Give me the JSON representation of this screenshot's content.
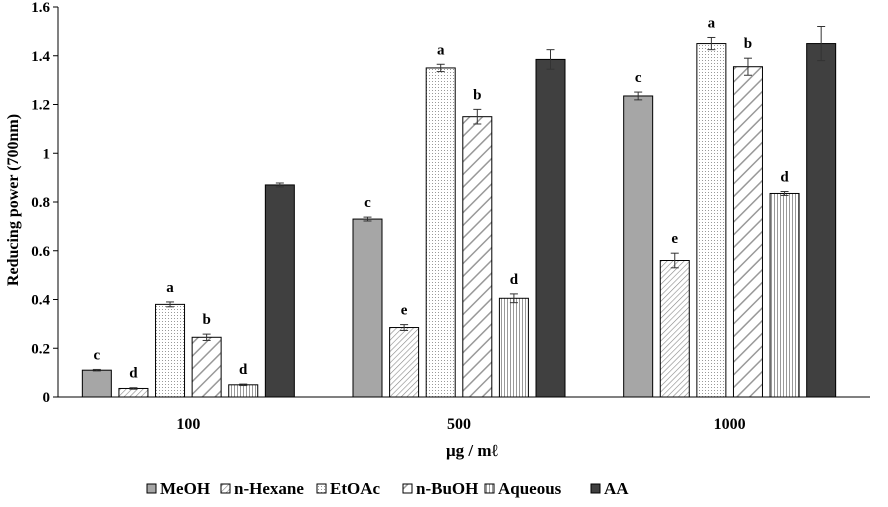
{
  "chart_data": {
    "type": "bar",
    "title": "",
    "xlabel": "μg / mℓ",
    "ylabel": "Reducing power (700nm)",
    "ylim": [
      0,
      1.6
    ],
    "yticks": [
      0,
      0.2,
      0.4,
      0.6,
      0.8,
      1,
      1.2,
      1.4,
      1.6
    ],
    "ytick_labels": [
      "0",
      "0.2",
      "0.4",
      "0.6",
      "0.8",
      "1",
      "1.2",
      "1.4",
      "1.6"
    ],
    "categories": [
      "100",
      "500",
      "1000"
    ],
    "grid": false,
    "legend_position": "bottom",
    "series": [
      {
        "name": "MeOH",
        "fill": "solid-gray",
        "color": "#a6a6a6",
        "values": [
          0.11,
          0.73,
          1.235
        ],
        "errors": [
          0.003,
          0.008,
          0.016
        ],
        "letters": [
          "c",
          "c",
          "c"
        ]
      },
      {
        "name": "n-Hexane",
        "fill": "fine-diagonal",
        "color": "#ffffff",
        "values": [
          0.035,
          0.285,
          0.56
        ],
        "errors": [
          0.003,
          0.012,
          0.03
        ],
        "letters": [
          "d",
          "e",
          "e"
        ]
      },
      {
        "name": "EtOAc",
        "fill": "dots",
        "color": "#ffffff",
        "values": [
          0.38,
          1.35,
          1.45
        ],
        "errors": [
          0.01,
          0.015,
          0.025
        ],
        "letters": [
          "a",
          "a",
          "a"
        ]
      },
      {
        "name": "n-BuOH",
        "fill": "wide-diagonal",
        "color": "#ffffff",
        "values": [
          0.245,
          1.15,
          1.355
        ],
        "errors": [
          0.013,
          0.03,
          0.035
        ],
        "letters": [
          "b",
          "b",
          "b"
        ]
      },
      {
        "name": "Aqueous",
        "fill": "vertical-lines",
        "color": "#ffffff",
        "values": [
          0.05,
          0.405,
          0.835
        ],
        "errors": [
          0.003,
          0.018,
          0.008
        ],
        "letters": [
          "d",
          "d",
          "d"
        ]
      },
      {
        "name": "AA",
        "fill": "solid-dark",
        "color": "#404040",
        "values": [
          0.87,
          1.385,
          1.45
        ],
        "errors": [
          0.008,
          0.04,
          0.07
        ],
        "letters": [
          "",
          "",
          ""
        ]
      }
    ]
  }
}
